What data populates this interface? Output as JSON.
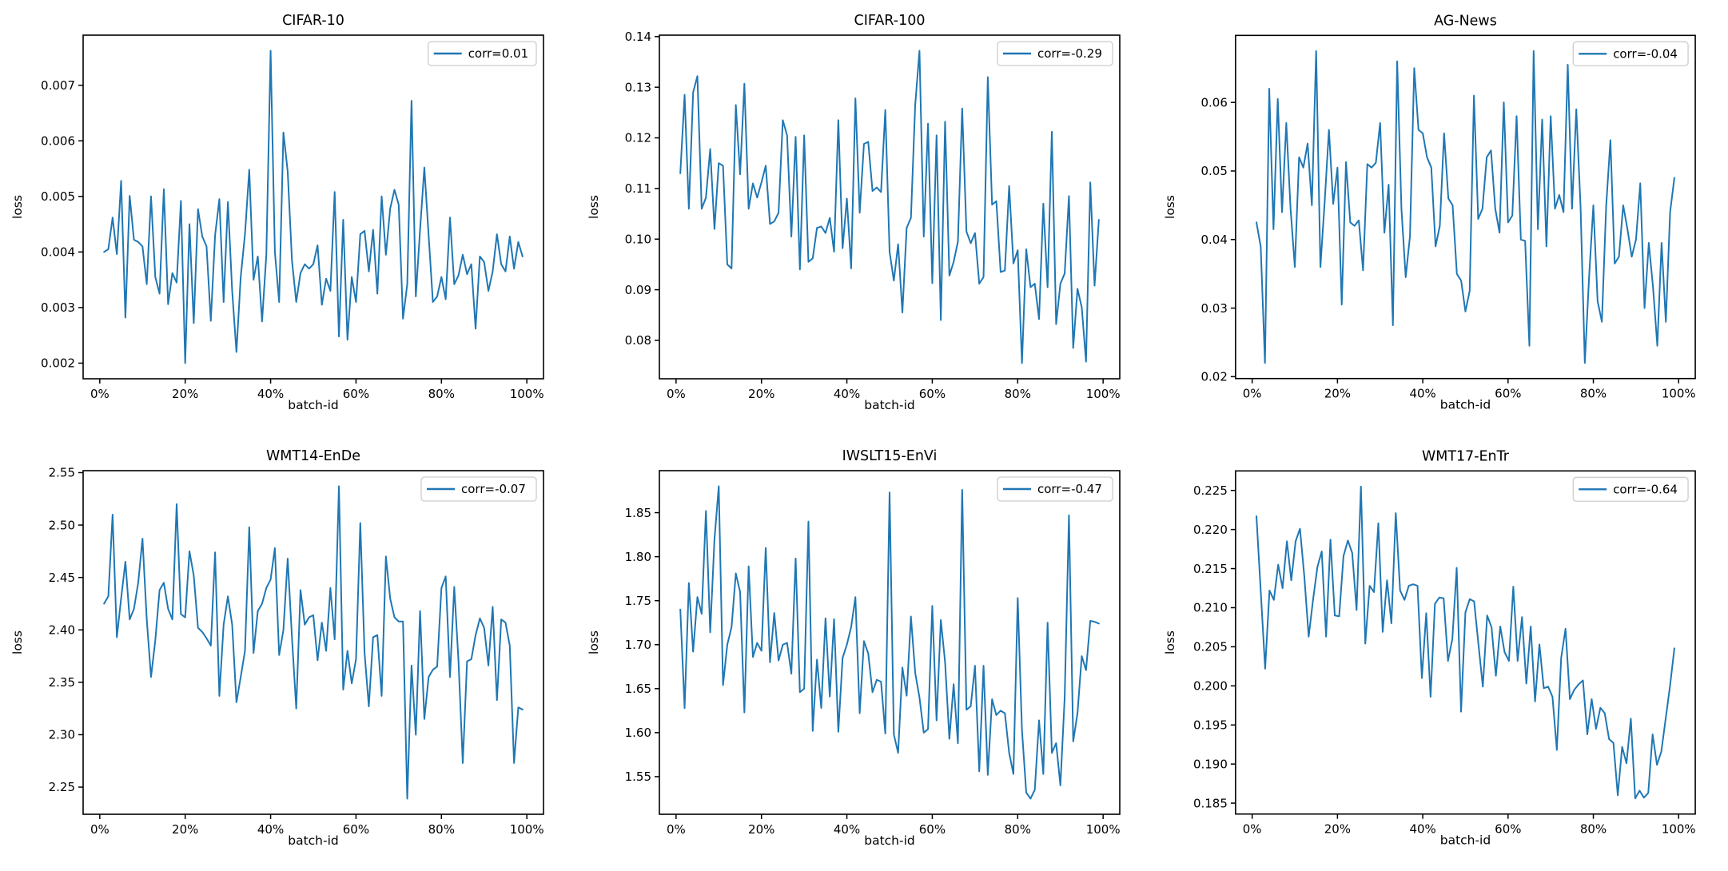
{
  "figure": {
    "line_color": "#1f77b4",
    "spine_color": "#000000",
    "text_color": "#000000",
    "legend_border_color": "#cccccc",
    "background_color": "#ffffff",
    "xlabel": "batch-id",
    "ylabel": "loss",
    "xtick_values": [
      0,
      20,
      40,
      60,
      80,
      100
    ],
    "xtick_labels": [
      "0%",
      "20%",
      "40%",
      "60%",
      "80%",
      "100%"
    ]
  },
  "chart_data": [
    {
      "type": "line",
      "title": "CIFAR-10",
      "legend": "corr=0.01",
      "corr": 0.01,
      "xlabel": "batch-id",
      "ylabel": "loss",
      "x": {
        "min": 1,
        "max": 99,
        "unit": "percent of batches"
      },
      "ytick_values": [
        0.002,
        0.003,
        0.004,
        0.005,
        0.006,
        0.007
      ],
      "ytick_labels": [
        "0.002",
        "0.003",
        "0.004",
        "0.005",
        "0.006",
        "0.007"
      ],
      "values": [
        0.004,
        0.00405,
        0.00462,
        0.00396,
        0.00528,
        0.00282,
        0.00501,
        0.00422,
        0.00418,
        0.0041,
        0.00342,
        0.005,
        0.00355,
        0.00325,
        0.00513,
        0.00306,
        0.00362,
        0.00345,
        0.00492,
        0.002,
        0.0045,
        0.00272,
        0.00477,
        0.00428,
        0.0041,
        0.00276,
        0.0043,
        0.00495,
        0.0031,
        0.0049,
        0.0033,
        0.0022,
        0.00355,
        0.00432,
        0.00548,
        0.0035,
        0.00392,
        0.00275,
        0.00395,
        0.00762,
        0.004,
        0.0031,
        0.00615,
        0.00545,
        0.00385,
        0.0031,
        0.00362,
        0.00378,
        0.0037,
        0.00378,
        0.00412,
        0.00305,
        0.00352,
        0.0033,
        0.00508,
        0.00248,
        0.00458,
        0.00242,
        0.00355,
        0.0031,
        0.00432,
        0.00438,
        0.00365,
        0.0044,
        0.00325,
        0.005,
        0.00395,
        0.00478,
        0.00512,
        0.00485,
        0.0028,
        0.00342,
        0.00672,
        0.0032,
        0.0044,
        0.00552,
        0.0043,
        0.0031,
        0.0032,
        0.00355,
        0.00315,
        0.00462,
        0.00342,
        0.00358,
        0.00395,
        0.0036,
        0.00378,
        0.00262,
        0.00392,
        0.00382,
        0.0033,
        0.00365,
        0.00432,
        0.00378,
        0.00365,
        0.00428,
        0.0037,
        0.00418,
        0.00392
      ]
    },
    {
      "type": "line",
      "title": "CIFAR-100",
      "legend": "corr=-0.29",
      "corr": -0.29,
      "xlabel": "batch-id",
      "ylabel": "loss",
      "x": {
        "min": 1,
        "max": 99,
        "unit": "percent of batches"
      },
      "ytick_values": [
        0.08,
        0.09,
        0.1,
        0.11,
        0.12,
        0.13,
        0.14
      ],
      "ytick_labels": [
        "0.08",
        "0.09",
        "0.10",
        "0.11",
        "0.12",
        "0.13",
        "0.14"
      ],
      "values": [
        0.113,
        0.1285,
        0.106,
        0.129,
        0.1322,
        0.106,
        0.1082,
        0.1178,
        0.102,
        0.115,
        0.1145,
        0.095,
        0.0942,
        0.1265,
        0.1128,
        0.1307,
        0.106,
        0.111,
        0.1082,
        0.1112,
        0.1145,
        0.103,
        0.1035,
        0.1052,
        0.1235,
        0.1205,
        0.1005,
        0.1202,
        0.094,
        0.1205,
        0.0955,
        0.0962,
        0.1022,
        0.1025,
        0.1012,
        0.1042,
        0.0975,
        0.1235,
        0.0982,
        0.108,
        0.0942,
        0.1278,
        0.1052,
        0.1188,
        0.1192,
        0.1095,
        0.1102,
        0.1093,
        0.1255,
        0.0975,
        0.0918,
        0.099,
        0.0855,
        0.1022,
        0.1042,
        0.1265,
        0.1372,
        0.1005,
        0.1228,
        0.0913,
        0.1205,
        0.084,
        0.1232,
        0.0928,
        0.0955,
        0.0995,
        0.1258,
        0.1015,
        0.0992,
        0.1012,
        0.0912,
        0.0925,
        0.132,
        0.1068,
        0.1075,
        0.0935,
        0.0938,
        0.1105,
        0.0952,
        0.0978,
        0.0755,
        0.098,
        0.0905,
        0.0912,
        0.0842,
        0.107,
        0.0905,
        0.1212,
        0.0832,
        0.0912,
        0.0932,
        0.1085,
        0.0785,
        0.0902,
        0.0865,
        0.0758,
        0.1112,
        0.0908,
        0.1038
      ]
    },
    {
      "type": "line",
      "title": "AG-News",
      "legend": "corr=-0.04",
      "corr": -0.04,
      "xlabel": "batch-id",
      "ylabel": "loss",
      "x": {
        "min": 1,
        "max": 99,
        "unit": "percent of batches"
      },
      "ytick_values": [
        0.02,
        0.03,
        0.04,
        0.05,
        0.06
      ],
      "ytick_labels": [
        "0.02",
        "0.03",
        "0.04",
        "0.05",
        "0.06"
      ],
      "values": [
        0.0425,
        0.039,
        0.022,
        0.062,
        0.0415,
        0.0605,
        0.044,
        0.057,
        0.0445,
        0.036,
        0.052,
        0.0505,
        0.054,
        0.045,
        0.0675,
        0.036,
        0.0455,
        0.056,
        0.0452,
        0.0505,
        0.0305,
        0.0513,
        0.0425,
        0.042,
        0.0428,
        0.0355,
        0.051,
        0.0505,
        0.0512,
        0.057,
        0.041,
        0.048,
        0.0275,
        0.066,
        0.0445,
        0.0345,
        0.0405,
        0.065,
        0.056,
        0.0555,
        0.052,
        0.0505,
        0.039,
        0.042,
        0.0555,
        0.046,
        0.045,
        0.035,
        0.034,
        0.0295,
        0.0325,
        0.061,
        0.043,
        0.0445,
        0.052,
        0.053,
        0.0445,
        0.041,
        0.06,
        0.0425,
        0.0435,
        0.058,
        0.04,
        0.0398,
        0.0245,
        0.0675,
        0.0415,
        0.0575,
        0.039,
        0.058,
        0.0445,
        0.0465,
        0.044,
        0.0655,
        0.0445,
        0.059,
        0.0448,
        0.022,
        0.0345,
        0.045,
        0.031,
        0.028,
        0.0448,
        0.0545,
        0.0365,
        0.0375,
        0.045,
        0.0415,
        0.0375,
        0.04,
        0.0482,
        0.03,
        0.0395,
        0.033,
        0.0245,
        0.0395,
        0.028,
        0.044,
        0.049
      ]
    },
    {
      "type": "line",
      "title": "WMT14-EnDe",
      "legend": "corr=-0.07",
      "corr": -0.07,
      "xlabel": "batch-id",
      "ylabel": "loss",
      "x": {
        "min": 1,
        "max": 99,
        "unit": "percent of batches"
      },
      "ytick_values": [
        2.25,
        2.3,
        2.35,
        2.4,
        2.45,
        2.5,
        2.55
      ],
      "ytick_labels": [
        "2.25",
        "2.30",
        "2.35",
        "2.40",
        "2.45",
        "2.50",
        "2.55"
      ],
      "values": [
        2.425,
        2.432,
        2.51,
        2.393,
        2.43,
        2.465,
        2.41,
        2.42,
        2.445,
        2.487,
        2.41,
        2.355,
        2.39,
        2.438,
        2.445,
        2.42,
        2.41,
        2.52,
        2.415,
        2.412,
        2.475,
        2.452,
        2.402,
        2.398,
        2.392,
        2.385,
        2.474,
        2.337,
        2.405,
        2.432,
        2.405,
        2.331,
        2.355,
        2.38,
        2.498,
        2.378,
        2.418,
        2.425,
        2.44,
        2.448,
        2.478,
        2.376,
        2.4,
        2.468,
        2.393,
        2.325,
        2.438,
        2.405,
        2.412,
        2.414,
        2.371,
        2.407,
        2.38,
        2.44,
        2.391,
        2.537,
        2.343,
        2.38,
        2.349,
        2.372,
        2.502,
        2.378,
        2.327,
        2.393,
        2.395,
        2.337,
        2.47,
        2.43,
        2.412,
        2.408,
        2.408,
        2.239,
        2.366,
        2.3,
        2.418,
        2.315,
        2.355,
        2.362,
        2.365,
        2.44,
        2.451,
        2.355,
        2.441,
        2.37,
        2.273,
        2.37,
        2.372,
        2.395,
        2.411,
        2.402,
        2.366,
        2.422,
        2.333,
        2.41,
        2.407,
        2.385,
        2.273,
        2.326,
        2.324
      ]
    },
    {
      "type": "line",
      "title": "IWSLT15-EnVi",
      "legend": "corr=-0.47",
      "corr": -0.47,
      "xlabel": "batch-id",
      "ylabel": "loss",
      "x": {
        "min": 1,
        "max": 99,
        "unit": "percent of batches"
      },
      "ytick_values": [
        1.55,
        1.6,
        1.65,
        1.7,
        1.75,
        1.8,
        1.85
      ],
      "ytick_labels": [
        "1.55",
        "1.60",
        "1.65",
        "1.70",
        "1.75",
        "1.80",
        "1.85"
      ],
      "values": [
        1.74,
        1.628,
        1.77,
        1.692,
        1.754,
        1.735,
        1.852,
        1.714,
        1.82,
        1.88,
        1.654,
        1.7,
        1.72,
        1.781,
        1.76,
        1.623,
        1.789,
        1.686,
        1.702,
        1.693,
        1.81,
        1.68,
        1.736,
        1.682,
        1.7,
        1.702,
        1.667,
        1.798,
        1.646,
        1.65,
        1.84,
        1.602,
        1.683,
        1.628,
        1.73,
        1.641,
        1.729,
        1.601,
        1.685,
        1.7,
        1.72,
        1.754,
        1.622,
        1.704,
        1.69,
        1.646,
        1.66,
        1.658,
        1.599,
        1.873,
        1.598,
        1.577,
        1.674,
        1.642,
        1.732,
        1.668,
        1.64,
        1.6,
        1.604,
        1.744,
        1.614,
        1.728,
        1.68,
        1.593,
        1.655,
        1.588,
        1.876,
        1.626,
        1.63,
        1.676,
        1.556,
        1.676,
        1.552,
        1.638,
        1.62,
        1.625,
        1.622,
        1.577,
        1.553,
        1.753,
        1.603,
        1.532,
        1.525,
        1.535,
        1.614,
        1.553,
        1.725,
        1.577,
        1.588,
        1.54,
        1.64,
        1.847,
        1.59,
        1.622,
        1.687,
        1.671,
        1.727,
        1.726,
        1.724
      ]
    },
    {
      "type": "line",
      "title": "WMT17-EnTr",
      "legend": "corr=-0.64",
      "corr": -0.64,
      "xlabel": "batch-id",
      "ylabel": "loss",
      "x": {
        "min": 1,
        "max": 99,
        "unit": "percent of batches"
      },
      "ytick_values": [
        0.185,
        0.19,
        0.195,
        0.2,
        0.205,
        0.21,
        0.215,
        0.22,
        0.225
      ],
      "ytick_labels": [
        "0.185",
        "0.190",
        "0.195",
        "0.200",
        "0.205",
        "0.210",
        "0.215",
        "0.220",
        "0.225"
      ],
      "values": [
        0.2217,
        0.212,
        0.2022,
        0.2122,
        0.211,
        0.2155,
        0.2125,
        0.2185,
        0.2135,
        0.2185,
        0.2201,
        0.214,
        0.2063,
        0.211,
        0.2152,
        0.2172,
        0.2063,
        0.2187,
        0.209,
        0.2089,
        0.2166,
        0.2186,
        0.217,
        0.2097,
        0.2255,
        0.2054,
        0.2128,
        0.212,
        0.2208,
        0.2069,
        0.2135,
        0.208,
        0.2221,
        0.2122,
        0.211,
        0.2128,
        0.213,
        0.2128,
        0.201,
        0.2093,
        0.1986,
        0.2105,
        0.2113,
        0.2112,
        0.2032,
        0.206,
        0.2151,
        0.1967,
        0.2094,
        0.2111,
        0.2108,
        0.2053,
        0.1999,
        0.209,
        0.2075,
        0.2013,
        0.2076,
        0.2043,
        0.2032,
        0.2127,
        0.2032,
        0.2088,
        0.2003,
        0.2076,
        0.198,
        0.2053,
        0.1997,
        0.1999,
        0.1986,
        0.1918,
        0.2036,
        0.2073,
        0.1983,
        0.1995,
        0.2002,
        0.2007,
        0.1938,
        0.1983,
        0.1945,
        0.1972,
        0.1965,
        0.1932,
        0.1927,
        0.186,
        0.1922,
        0.1901,
        0.1958,
        0.1856,
        0.1866,
        0.1857,
        0.1863,
        0.1938,
        0.1899,
        0.1916,
        0.1958,
        0.2,
        0.2048
      ]
    }
  ]
}
